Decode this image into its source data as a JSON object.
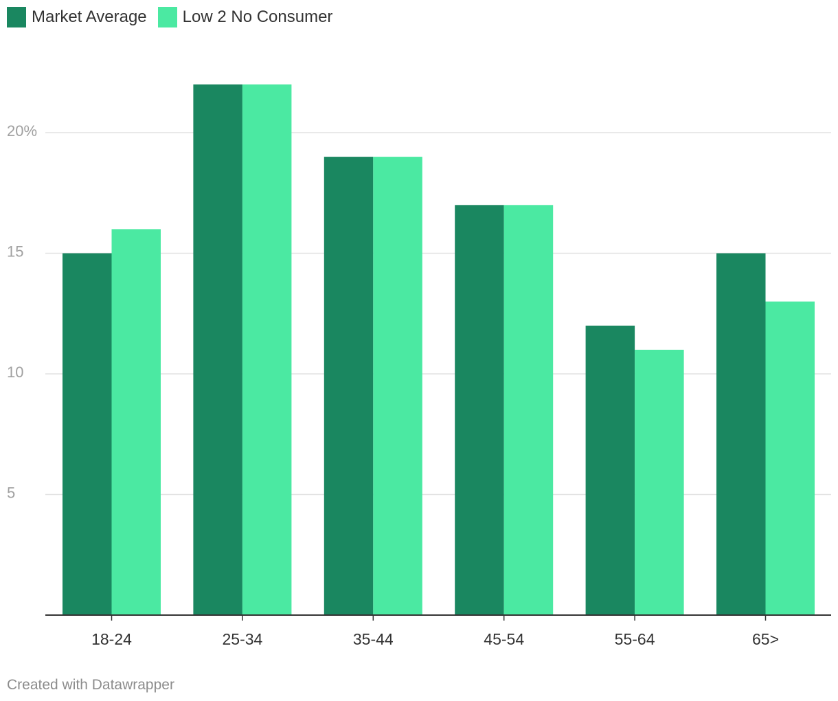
{
  "colors": {
    "market_average": "#1a8760",
    "low2no": "#4be9a2",
    "grid": "#e2e2e2",
    "axis": "#333333"
  },
  "footer": {
    "text": "Created with Datawrapper"
  },
  "chart_data": {
    "type": "bar",
    "categories": [
      "18-24",
      "25-34",
      "35-44",
      "45-54",
      "55-64",
      "65>"
    ],
    "series": [
      {
        "name": "Market Average",
        "values": [
          15,
          22,
          19,
          17,
          12,
          15
        ]
      },
      {
        "name": "Low 2 No Consumer",
        "values": [
          16,
          22,
          19,
          17,
          11,
          13
        ]
      }
    ],
    "yticks": [
      {
        "value": 5,
        "label": "5"
      },
      {
        "value": 10,
        "label": "10"
      },
      {
        "value": 15,
        "label": "15"
      },
      {
        "value": 20,
        "label": "20%"
      }
    ],
    "ylim": [
      0,
      22
    ],
    "grid": true,
    "legend_placement": "top-left"
  }
}
